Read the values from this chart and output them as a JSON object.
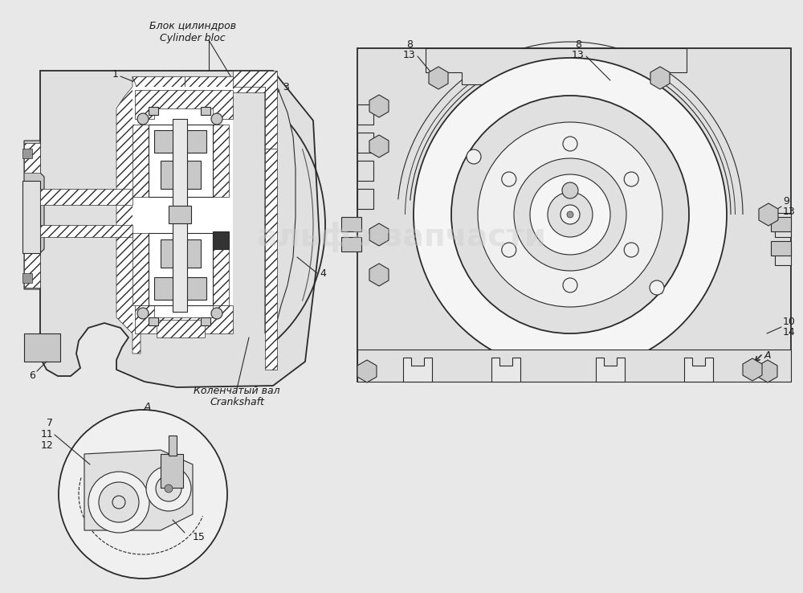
{
  "bg_color": "#e8e8e8",
  "line_color": "#2a2a2a",
  "line_color_light": "#555555",
  "hatch_color": "#333333",
  "fill_white": "#ffffff",
  "fill_light": "#e0e0e0",
  "fill_mid": "#c8c8c8",
  "fill_dark": "#999999",
  "watermark_text": "альфа-запчасти",
  "watermark_color": "#cccccc",
  "label_blok_ru": "Блок цилиндров",
  "label_blok_en": "Cylinder bloc",
  "label_kolen_ru": "Коленчатый вал",
  "label_kolen_en": "Crankshaft",
  "label_A": "A"
}
